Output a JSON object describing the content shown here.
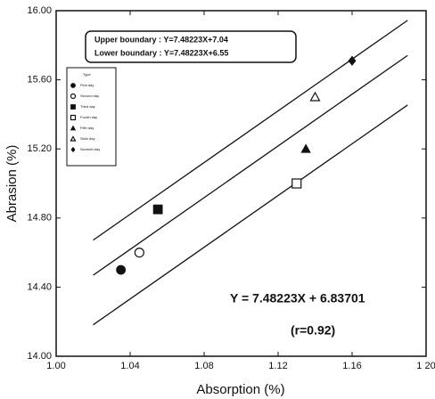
{
  "chart_data": {
    "type": "scatter",
    "x_label": "Absorption  (%)",
    "y_label": "Abrasion (%)",
    "annotations": [
      "Upper boundary : Y=7.48223X+7.04",
      "Lower boundary : Y=7.48223X+6.55",
      "Y = 7.48223X + 6.83701",
      "(r=0.92)"
    ],
    "legend_title": "Type",
    "xlim": [
      1.0,
      1.2
    ],
    "ylim": [
      14.0,
      16.0
    ],
    "xticks": [
      {
        "value": 1.0,
        "label": "1.00"
      },
      {
        "value": 1.04,
        "label": "1.04"
      },
      {
        "value": 1.08,
        "label": "1.08"
      },
      {
        "value": 1.12,
        "label": "1.12"
      },
      {
        "value": 1.16,
        "label": "1.16"
      },
      {
        "value": 1.2,
        "label": "1 20"
      }
    ],
    "yticks": [
      {
        "value": 14.0,
        "label": "14.00"
      },
      {
        "value": 14.4,
        "label": "14.40"
      },
      {
        "value": 14.8,
        "label": "14.80"
      },
      {
        "value": 15.2,
        "label": "15.20"
      },
      {
        "value": 15.6,
        "label": "15.60"
      },
      {
        "value": 16.0,
        "label": "16.00"
      }
    ],
    "lines": [
      {
        "x": [
          1.02,
          1.19
        ],
        "values": [
          14.672,
          15.944
        ],
        "color": "#111111"
      },
      {
        "x": [
          1.02,
          1.19
        ],
        "values": [
          14.469,
          15.741
        ],
        "color": "#111111"
      },
      {
        "x": [
          1.02,
          1.19
        ],
        "values": [
          14.182,
          15.454
        ],
        "color": "#111111"
      }
    ],
    "series": [
      {
        "name": "First day",
        "marker": "circle",
        "color": "#111111",
        "x": [
          1.035
        ],
        "values": [
          14.5
        ]
      },
      {
        "name": "Second day",
        "marker": "circle-open",
        "color": "#111111",
        "x": [
          1.045
        ],
        "values": [
          14.6
        ]
      },
      {
        "name": "Third day",
        "marker": "square",
        "color": "#111111",
        "x": [
          1.055
        ],
        "values": [
          14.85
        ]
      },
      {
        "name": "Fourth day",
        "marker": "square-open",
        "color": "#111111",
        "x": [
          1.13
        ],
        "values": [
          15.0
        ]
      },
      {
        "name": "Fifth day",
        "marker": "triangle",
        "color": "#111111",
        "x": [
          1.135
        ],
        "values": [
          15.2
        ]
      },
      {
        "name": "Sixth day",
        "marker": "triangle-open",
        "color": "#111111",
        "x": [
          1.14
        ],
        "values": [
          15.5
        ]
      },
      {
        "name": "Seventh day",
        "marker": "diamond",
        "color": "#111111",
        "x": [
          1.16
        ],
        "values": [
          15.71
        ]
      }
    ]
  }
}
